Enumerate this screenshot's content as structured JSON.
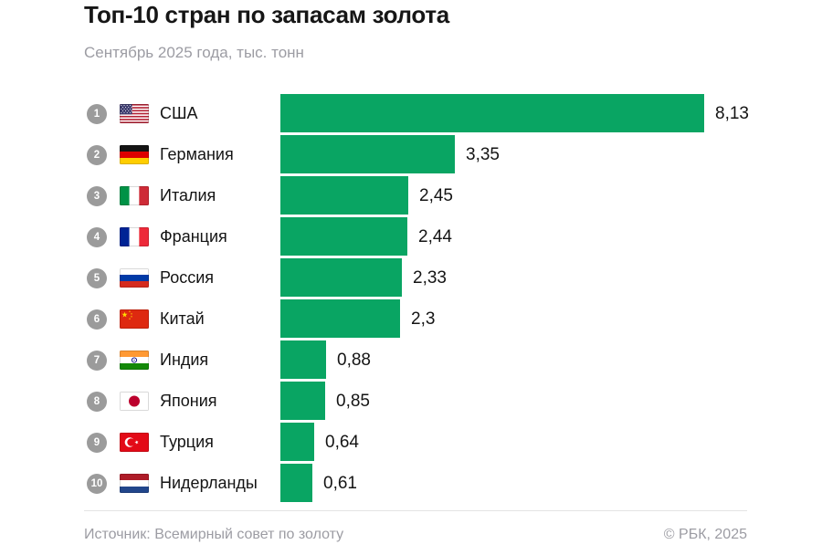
{
  "header": {
    "title": "Топ-10 стран по запасам золота",
    "subtitle": "Сентябрь 2025 года, тыс. тонн"
  },
  "chart_data": {
    "type": "bar",
    "orientation": "horizontal",
    "title": "Топ-10 стран по запасам золота",
    "subtitle": "Сентябрь 2025 года, тыс. тонн",
    "unit": "тыс. тонн",
    "period": "Сентябрь 2025 года",
    "xlim": [
      0,
      8.13
    ],
    "grid": false,
    "legend": false,
    "bar_color": "#09a563",
    "rank_badge_color": "#9b9b9b",
    "categories": [
      "США",
      "Германия",
      "Италия",
      "Франция",
      "Россия",
      "Китай",
      "Индия",
      "Япония",
      "Турция",
      "Нидерланды"
    ],
    "values": [
      8.13,
      3.35,
      2.45,
      2.44,
      2.33,
      2.3,
      0.88,
      0.85,
      0.64,
      0.61
    ],
    "rows": [
      {
        "rank": "1",
        "country": "США",
        "flag": "us",
        "value": 8.13,
        "label": "8,13"
      },
      {
        "rank": "2",
        "country": "Германия",
        "flag": "de",
        "value": 3.35,
        "label": "3,35"
      },
      {
        "rank": "3",
        "country": "Италия",
        "flag": "it",
        "value": 2.45,
        "label": "2,45"
      },
      {
        "rank": "4",
        "country": "Франция",
        "flag": "fr",
        "value": 2.44,
        "label": "2,44"
      },
      {
        "rank": "5",
        "country": "Россия",
        "flag": "ru",
        "value": 2.33,
        "label": "2,33"
      },
      {
        "rank": "6",
        "country": "Китай",
        "flag": "cn",
        "value": 2.3,
        "label": "2,3"
      },
      {
        "rank": "7",
        "country": "Индия",
        "flag": "in",
        "value": 0.88,
        "label": "0,88"
      },
      {
        "rank": "8",
        "country": "Япония",
        "flag": "jp",
        "value": 0.85,
        "label": "0,85"
      },
      {
        "rank": "9",
        "country": "Турция",
        "flag": "tr",
        "value": 0.64,
        "label": "0,64"
      },
      {
        "rank": "10",
        "country": "Нидерланды",
        "flag": "nl",
        "value": 0.61,
        "label": "0,61"
      }
    ]
  },
  "footer": {
    "source": "Источник: Всемирный совет по золоту",
    "copyright": "© РБК, 2025"
  }
}
